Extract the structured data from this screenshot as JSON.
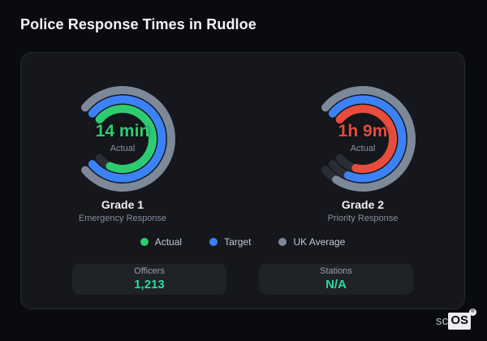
{
  "page_title": "Police Response Times in Rudloe",
  "colors": {
    "background": "#0a0b0e",
    "card_background": "#15171c",
    "track": "#2a2e34",
    "actual_green": "#2ecc71",
    "actual_red": "#e74c3c",
    "target_blue": "#3b82f6",
    "uk_average_gray": "#7d8899",
    "stat_teal": "#2bd9a5"
  },
  "chart_data": [
    {
      "type": "radial-gauge",
      "title": "Grade 1",
      "subtitle": "Emergency Response",
      "center_value": "14 min",
      "center_label": "Actual",
      "center_value_color": "#2ecc71",
      "rings": [
        {
          "name": "UK Average",
          "color": "#7d8899",
          "fill": 1.0
        },
        {
          "name": "Target",
          "color": "#3b82f6",
          "fill": 1.0
        },
        {
          "name": "Actual",
          "color": "#2ecc71",
          "fill": 0.91
        }
      ]
    },
    {
      "type": "radial-gauge",
      "title": "Grade 2",
      "subtitle": "Priority Response",
      "center_value": "1h 9m",
      "center_label": "Actual",
      "center_value_color": "#e74c3c",
      "rings": [
        {
          "name": "UK Average",
          "color": "#7d8899",
          "fill": 0.94
        },
        {
          "name": "Target",
          "color": "#3b82f6",
          "fill": 0.9
        },
        {
          "name": "Actual",
          "color": "#e74c3c",
          "fill": 0.87
        }
      ]
    }
  ],
  "legend": {
    "items": [
      {
        "label": "Actual",
        "color": "#2ecc71"
      },
      {
        "label": "Target",
        "color": "#3b82f6"
      },
      {
        "label": "UK Average",
        "color": "#7d8899"
      }
    ]
  },
  "stats": [
    {
      "label": "Officers",
      "value": "1,213"
    },
    {
      "label": "Stations",
      "value": "N/A"
    }
  ],
  "logo": {
    "prefix": "sc",
    "suffix": "OS",
    "registered": "®"
  }
}
